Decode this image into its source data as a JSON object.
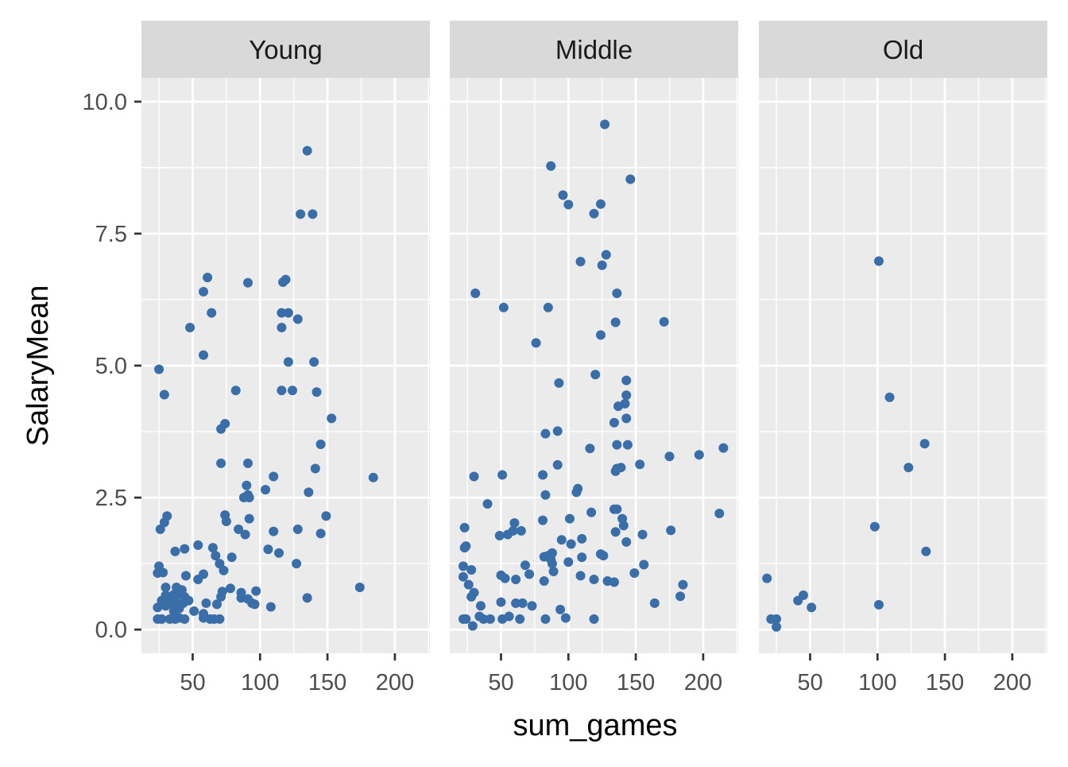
{
  "chart_data": {
    "type": "scatter",
    "title": "",
    "xlabel": "sum_games",
    "ylabel": "SalaryMean",
    "xlim": [
      12,
      226
    ],
    "ylim": [
      -0.45,
      10.45
    ],
    "x_ticks": [
      50,
      100,
      150,
      200
    ],
    "y_ticks": [
      0.0,
      2.5,
      5.0,
      7.5,
      10.0
    ],
    "y_tick_labels": [
      "0.0",
      "2.5",
      "5.0",
      "7.5",
      "10.0"
    ],
    "grid": true,
    "point_color": "#3A6EA8",
    "facet_by": "age_group",
    "facets": [
      {
        "label": "Young",
        "points": [
          [
            135,
            9.07
          ],
          [
            130,
            7.87
          ],
          [
            139,
            7.87
          ],
          [
            61,
            6.67
          ],
          [
            119,
            6.63
          ],
          [
            117,
            6.58
          ],
          [
            58,
            6.4
          ],
          [
            91,
            6.57
          ],
          [
            64,
            6.0
          ],
          [
            116,
            6.0
          ],
          [
            121,
            6.0
          ],
          [
            128,
            5.88
          ],
          [
            48,
            5.72
          ],
          [
            116,
            5.72
          ],
          [
            58,
            5.2
          ],
          [
            121,
            5.07
          ],
          [
            140,
            5.07
          ],
          [
            25,
            4.93
          ],
          [
            29,
            4.45
          ],
          [
            82,
            4.53
          ],
          [
            116,
            4.53
          ],
          [
            124,
            4.53
          ],
          [
            142,
            4.5
          ],
          [
            153,
            4.0
          ],
          [
            74,
            3.9
          ],
          [
            71,
            3.8
          ],
          [
            145,
            3.51
          ],
          [
            71,
            3.15
          ],
          [
            91,
            3.15
          ],
          [
            141,
            3.05
          ],
          [
            184,
            2.88
          ],
          [
            110,
            2.9
          ],
          [
            90,
            2.73
          ],
          [
            104,
            2.65
          ],
          [
            136,
            2.6
          ],
          [
            88,
            2.5
          ],
          [
            91,
            2.55
          ],
          [
            92,
            2.5
          ],
          [
            31,
            2.15
          ],
          [
            74,
            2.17
          ],
          [
            149,
            2.15
          ],
          [
            92,
            2.1
          ],
          [
            75,
            2.05
          ],
          [
            29,
            2.03
          ],
          [
            26,
            1.9
          ],
          [
            84,
            1.9
          ],
          [
            128,
            1.9
          ],
          [
            110,
            1.86
          ],
          [
            145,
            1.82
          ],
          [
            89,
            1.8
          ],
          [
            54,
            1.6
          ],
          [
            65,
            1.55
          ],
          [
            44,
            1.53
          ],
          [
            37,
            1.48
          ],
          [
            106,
            1.52
          ],
          [
            114,
            1.45
          ],
          [
            67,
            1.4
          ],
          [
            79,
            1.37
          ],
          [
            70,
            1.25
          ],
          [
            127,
            1.25
          ],
          [
            25,
            1.2
          ],
          [
            73,
            1.12
          ],
          [
            24,
            1.07
          ],
          [
            28,
            1.08
          ],
          [
            45,
            1.02
          ],
          [
            58,
            1.05
          ],
          [
            54,
            0.95
          ],
          [
            30,
            0.8
          ],
          [
            38,
            0.8
          ],
          [
            42,
            0.75
          ],
          [
            72,
            0.72
          ],
          [
            78,
            0.78
          ],
          [
            86,
            0.7
          ],
          [
            97,
            0.73
          ],
          [
            174,
            0.8
          ],
          [
            30,
            0.65
          ],
          [
            33,
            0.6
          ],
          [
            36,
            0.66
          ],
          [
            40,
            0.68
          ],
          [
            44,
            0.62
          ],
          [
            71,
            0.62
          ],
          [
            86,
            0.6
          ],
          [
            91,
            0.58
          ],
          [
            135,
            0.6
          ],
          [
            27,
            0.55
          ],
          [
            35,
            0.5
          ],
          [
            38,
            0.52
          ],
          [
            43,
            0.5
          ],
          [
            47,
            0.55
          ],
          [
            60,
            0.5
          ],
          [
            68,
            0.48
          ],
          [
            94,
            0.5
          ],
          [
            96,
            0.48
          ],
          [
            108,
            0.43
          ],
          [
            24,
            0.42
          ],
          [
            30,
            0.45
          ],
          [
            40,
            0.4
          ],
          [
            36,
            0.35
          ],
          [
            51,
            0.35
          ],
          [
            58,
            0.3
          ],
          [
            24,
            0.2
          ],
          [
            27,
            0.2
          ],
          [
            33,
            0.2
          ],
          [
            37,
            0.2
          ],
          [
            40,
            0.22
          ],
          [
            44,
            0.2
          ],
          [
            58,
            0.22
          ],
          [
            63,
            0.2
          ],
          [
            66,
            0.2
          ],
          [
            70,
            0.2
          ]
        ]
      },
      {
        "label": "Middle",
        "points": [
          [
            127,
            9.57
          ],
          [
            87,
            8.78
          ],
          [
            146,
            8.53
          ],
          [
            96,
            8.23
          ],
          [
            100,
            8.05
          ],
          [
            124,
            8.06
          ],
          [
            119,
            7.88
          ],
          [
            128,
            7.1
          ],
          [
            109,
            6.97
          ],
          [
            125,
            6.9
          ],
          [
            31,
            6.37
          ],
          [
            136,
            6.37
          ],
          [
            52,
            6.1
          ],
          [
            85,
            6.1
          ],
          [
            135,
            5.82
          ],
          [
            171,
            5.83
          ],
          [
            124,
            5.58
          ],
          [
            76,
            5.43
          ],
          [
            120,
            4.83
          ],
          [
            93,
            4.67
          ],
          [
            143,
            4.72
          ],
          [
            143,
            4.44
          ],
          [
            142,
            4.28
          ],
          [
            137,
            4.23
          ],
          [
            143,
            4.0
          ],
          [
            134,
            3.92
          ],
          [
            83,
            3.71
          ],
          [
            92,
            3.76
          ],
          [
            144,
            3.5
          ],
          [
            136,
            3.5
          ],
          [
            116,
            3.43
          ],
          [
            215,
            3.44
          ],
          [
            197,
            3.31
          ],
          [
            175,
            3.28
          ],
          [
            92,
            3.12
          ],
          [
            153,
            3.13
          ],
          [
            136,
            3.05
          ],
          [
            139,
            3.07
          ],
          [
            135,
            3.0
          ],
          [
            30,
            2.9
          ],
          [
            51,
            2.93
          ],
          [
            81,
            2.93
          ],
          [
            83,
            2.55
          ],
          [
            106,
            2.6
          ],
          [
            107,
            2.67
          ],
          [
            40,
            2.38
          ],
          [
            134,
            2.28
          ],
          [
            136,
            2.28
          ],
          [
            117,
            2.22
          ],
          [
            212,
            2.2
          ],
          [
            101,
            2.1
          ],
          [
            140,
            2.1
          ],
          [
            81,
            2.07
          ],
          [
            60,
            2.02
          ],
          [
            141,
            1.97
          ],
          [
            23,
            1.93
          ],
          [
            59,
            1.87
          ],
          [
            65,
            1.87
          ],
          [
            176,
            1.88
          ],
          [
            55,
            1.8
          ],
          [
            49,
            1.78
          ],
          [
            135,
            1.85
          ],
          [
            155,
            1.8
          ],
          [
            143,
            1.66
          ],
          [
            95,
            1.7
          ],
          [
            110,
            1.72
          ],
          [
            88,
            1.45
          ],
          [
            102,
            1.62
          ],
          [
            82,
            1.38
          ],
          [
            85,
            1.4
          ],
          [
            87,
            1.33
          ],
          [
            110,
            1.37
          ],
          [
            124,
            1.43
          ],
          [
            126,
            1.4
          ],
          [
            24,
            1.58
          ],
          [
            23,
            1.55
          ],
          [
            22,
            1.2
          ],
          [
            28,
            1.13
          ],
          [
            68,
            1.22
          ],
          [
            88,
            1.25
          ],
          [
            89,
            1.1
          ],
          [
            100,
            1.28
          ],
          [
            22,
            1.0
          ],
          [
            50,
            1.03
          ],
          [
            53,
            0.97
          ],
          [
            61,
            0.95
          ],
          [
            71,
            1.05
          ],
          [
            82,
            0.92
          ],
          [
            109,
            1.02
          ],
          [
            119,
            0.95
          ],
          [
            129,
            0.92
          ],
          [
            134,
            0.9
          ],
          [
            149,
            1.07
          ],
          [
            156,
            1.23
          ],
          [
            26,
            0.85
          ],
          [
            30,
            0.7
          ],
          [
            28,
            0.62
          ],
          [
            50,
            0.52
          ],
          [
            61,
            0.5
          ],
          [
            66,
            0.5
          ],
          [
            73,
            0.45
          ],
          [
            185,
            0.85
          ],
          [
            183,
            0.63
          ],
          [
            164,
            0.5
          ],
          [
            35,
            0.45
          ],
          [
            94,
            0.38
          ],
          [
            22,
            0.2
          ],
          [
            24,
            0.2
          ],
          [
            34,
            0.25
          ],
          [
            37,
            0.2
          ],
          [
            42,
            0.2
          ],
          [
            51,
            0.2
          ],
          [
            56,
            0.25
          ],
          [
            64,
            0.2
          ],
          [
            83,
            0.2
          ],
          [
            98,
            0.22
          ],
          [
            119,
            0.2
          ],
          [
            29,
            0.07
          ]
        ]
      },
      {
        "label": "Old",
        "points": [
          [
            101,
            6.98
          ],
          [
            109,
            4.4
          ],
          [
            135,
            3.52
          ],
          [
            123,
            3.07
          ],
          [
            98,
            1.95
          ],
          [
            136,
            1.48
          ],
          [
            18,
            0.97
          ],
          [
            45,
            0.65
          ],
          [
            41,
            0.55
          ],
          [
            51,
            0.42
          ],
          [
            101,
            0.47
          ],
          [
            21,
            0.2
          ],
          [
            25,
            0.2
          ],
          [
            25,
            0.05
          ]
        ]
      }
    ]
  }
}
